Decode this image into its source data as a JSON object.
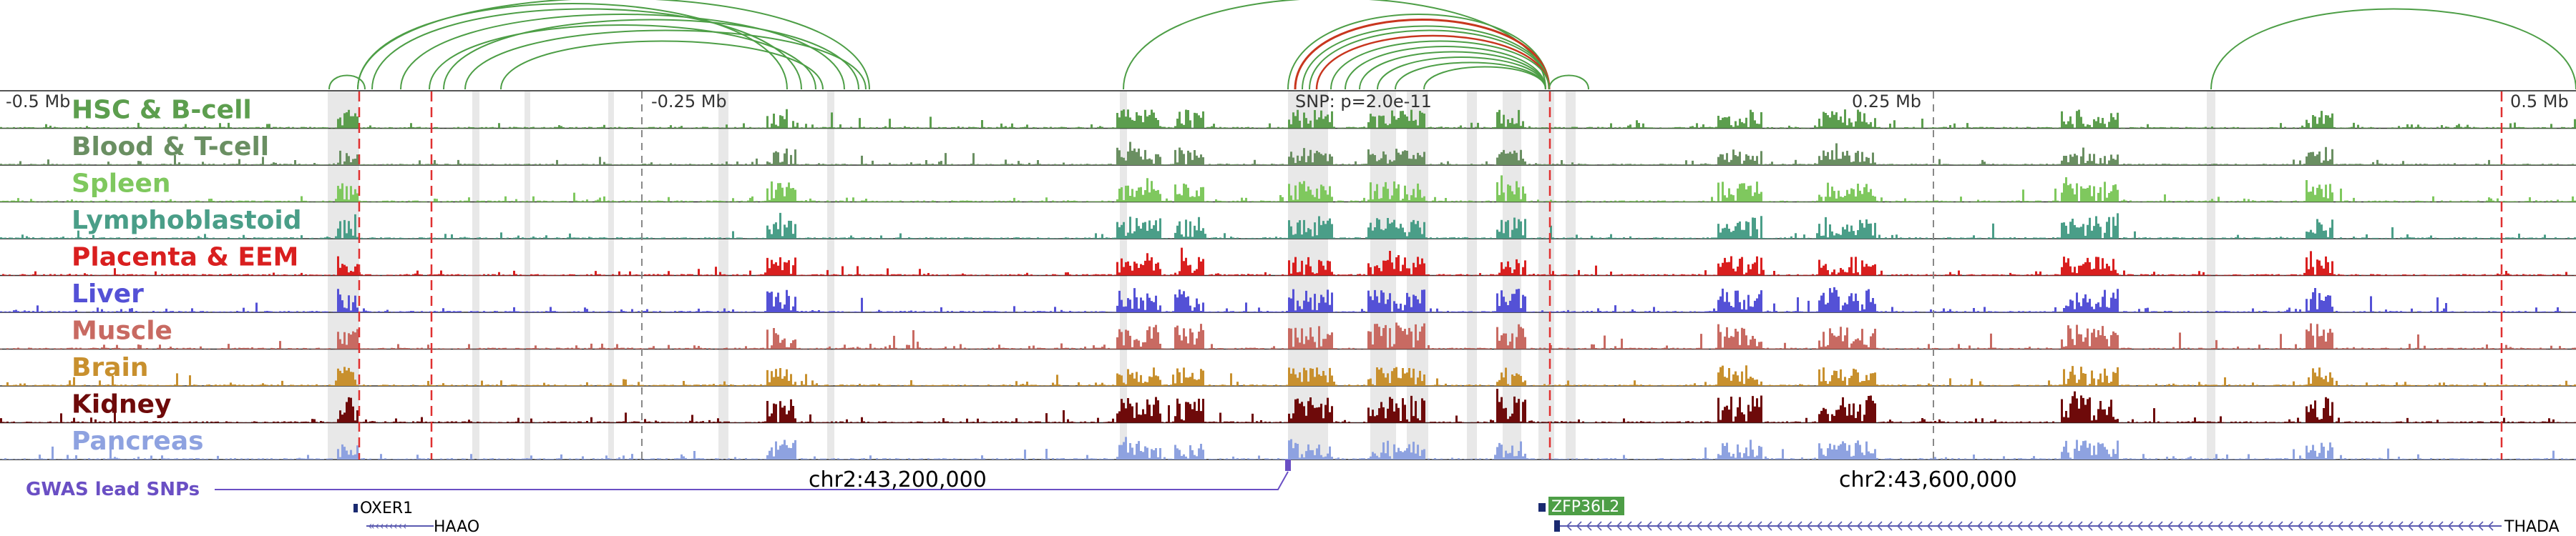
{
  "scale_labels": [
    "-0.5 Mb",
    "-0.25 Mb",
    "0.25 Mb",
    "0.5 Mb"
  ],
  "snp_label": "SNP: p=2.0e-11",
  "tracks": [
    {
      "name": "HSC & B-cell",
      "color": "#5c9e4e",
      "seed": 11,
      "scale": 0.55
    },
    {
      "name": "Blood & T-cell",
      "color": "#6a8f62",
      "seed": 23,
      "scale": 0.5
    },
    {
      "name": "Spleen",
      "color": "#7fc85e",
      "seed": 37,
      "scale": 0.6
    },
    {
      "name": "Lymphoblastoid",
      "color": "#4a9e88",
      "seed": 41,
      "scale": 0.65
    },
    {
      "name": "Placenta & EEM",
      "color": "#d91f1f",
      "seed": 53,
      "scale": 0.55
    },
    {
      "name": "Liver",
      "color": "#5451d6",
      "seed": 67,
      "scale": 0.7
    },
    {
      "name": "Muscle",
      "color": "#c86a62",
      "seed": 71,
      "scale": 0.75
    },
    {
      "name": "Brain",
      "color": "#c8902e",
      "seed": 83,
      "scale": 0.55
    },
    {
      "name": "Kidney",
      "color": "#6e0a0a",
      "seed": 97,
      "scale": 0.8
    },
    {
      "name": "Pancreas",
      "color": "#8ea2e0",
      "seed": 101,
      "scale": 0.55
    }
  ],
  "gwas_label": "GWAS lead SNPs",
  "coord_labels": [
    "chr2:43,200,000",
    "chr2:43,600,000"
  ],
  "genes": [
    "OXER1",
    "HAAO",
    "ZFP36L2",
    "THADA"
  ],
  "colors": {
    "gwas": "#6a4fc4",
    "arc_green": "#4d9e46",
    "arc_red": "#c8361e",
    "vline_red": "#e03030",
    "highlight": "#d0d0d0"
  }
}
